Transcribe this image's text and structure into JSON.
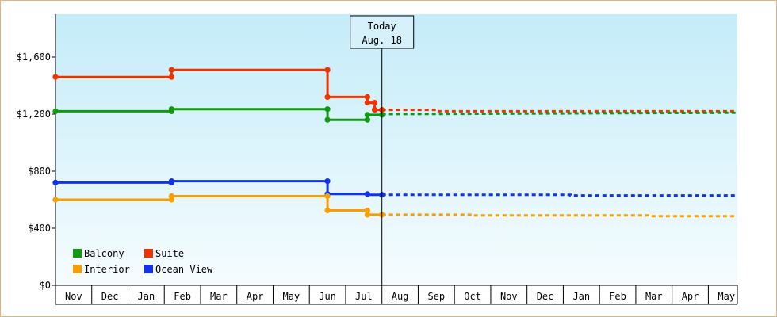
{
  "chart_data": {
    "type": "line",
    "subtype": "step",
    "title": "",
    "xlabel": "",
    "ylabel": "",
    "ylim": [
      0,
      1900
    ],
    "yticks": [
      "$0",
      "$400",
      "$800",
      "$1,200",
      "$1,600"
    ],
    "ytick_values": [
      0,
      400,
      800,
      1200,
      1600
    ],
    "x_categories": [
      "Nov",
      "Dec",
      "Jan",
      "Feb",
      "Mar",
      "Apr",
      "May",
      "Jun",
      "Jul",
      "Aug",
      "Sep",
      "Oct",
      "Nov",
      "Dec",
      "Jan",
      "Feb",
      "Mar",
      "Apr",
      "May"
    ],
    "x_range_months": [
      0,
      18.8
    ],
    "grid": false,
    "background": "light-blue gradient",
    "legend_position": "bottom-left",
    "annotation": {
      "line1": "Today",
      "line2": "Aug. 18",
      "x_month": 9.0
    },
    "series": [
      {
        "name": "Suite",
        "color": "#ee3300",
        "actual": [
          [
            0,
            1460
          ],
          [
            3.2,
            1460
          ],
          [
            3.2,
            1510
          ],
          [
            7.5,
            1510
          ],
          [
            7.5,
            1320
          ],
          [
            8.6,
            1320
          ],
          [
            8.6,
            1280
          ],
          [
            8.8,
            1280
          ],
          [
            8.8,
            1230
          ],
          [
            9.0,
            1230
          ]
        ],
        "forecast": [
          [
            9.0,
            1230
          ],
          [
            10.5,
            1230
          ],
          [
            10.5,
            1220
          ],
          [
            18.8,
            1220
          ]
        ],
        "markers": [
          [
            0,
            1460
          ],
          [
            3.2,
            1460
          ],
          [
            3.2,
            1510
          ],
          [
            7.5,
            1510
          ],
          [
            7.5,
            1320
          ],
          [
            8.6,
            1320
          ],
          [
            8.6,
            1280
          ],
          [
            8.8,
            1280
          ],
          [
            8.8,
            1230
          ],
          [
            9.0,
            1230
          ]
        ]
      },
      {
        "name": "Balcony",
        "color": "#119911",
        "actual": [
          [
            0,
            1220
          ],
          [
            3.2,
            1220
          ],
          [
            3.2,
            1235
          ],
          [
            7.5,
            1235
          ],
          [
            7.5,
            1160
          ],
          [
            8.6,
            1160
          ],
          [
            8.6,
            1195
          ],
          [
            9.0,
            1195
          ]
        ],
        "forecast": [
          [
            9.0,
            1200
          ],
          [
            18.8,
            1210
          ]
        ],
        "markers": [
          [
            0,
            1220
          ],
          [
            3.2,
            1220
          ],
          [
            3.2,
            1235
          ],
          [
            7.5,
            1235
          ],
          [
            7.5,
            1160
          ],
          [
            8.6,
            1160
          ],
          [
            8.6,
            1195
          ],
          [
            9.0,
            1195
          ]
        ]
      },
      {
        "name": "Ocean View",
        "color": "#1133ee",
        "actual": [
          [
            0,
            720
          ],
          [
            3.2,
            720
          ],
          [
            3.2,
            730
          ],
          [
            7.5,
            730
          ],
          [
            7.5,
            640
          ],
          [
            8.6,
            640
          ],
          [
            8.6,
            635
          ],
          [
            9.0,
            635
          ]
        ],
        "forecast": [
          [
            9.0,
            635
          ],
          [
            14.2,
            635
          ],
          [
            14.2,
            630
          ],
          [
            18.8,
            630
          ]
        ],
        "markers": [
          [
            0,
            720
          ],
          [
            3.2,
            720
          ],
          [
            3.2,
            730
          ],
          [
            7.5,
            730
          ],
          [
            7.5,
            640
          ],
          [
            8.6,
            640
          ],
          [
            9.0,
            635
          ]
        ]
      },
      {
        "name": "Interior",
        "color": "#f5a000",
        "actual": [
          [
            0,
            600
          ],
          [
            3.2,
            600
          ],
          [
            3.2,
            625
          ],
          [
            7.5,
            625
          ],
          [
            7.5,
            525
          ],
          [
            8.6,
            525
          ],
          [
            8.6,
            495
          ],
          [
            9.0,
            495
          ]
        ],
        "forecast": [
          [
            9.0,
            495
          ],
          [
            11.5,
            495
          ],
          [
            11.5,
            490
          ],
          [
            16.4,
            490
          ],
          [
            16.4,
            485
          ],
          [
            18.8,
            485
          ]
        ],
        "markers": [
          [
            0,
            600
          ],
          [
            3.2,
            600
          ],
          [
            3.2,
            625
          ],
          [
            7.5,
            625
          ],
          [
            7.5,
            525
          ],
          [
            8.6,
            525
          ],
          [
            8.6,
            495
          ],
          [
            9.0,
            495
          ]
        ]
      }
    ],
    "legend": [
      {
        "name": "Balcony",
        "color": "#119911"
      },
      {
        "name": "Suite",
        "color": "#ee3300"
      },
      {
        "name": "Interior",
        "color": "#f5a000"
      },
      {
        "name": "Ocean View",
        "color": "#1133ee"
      }
    ]
  }
}
